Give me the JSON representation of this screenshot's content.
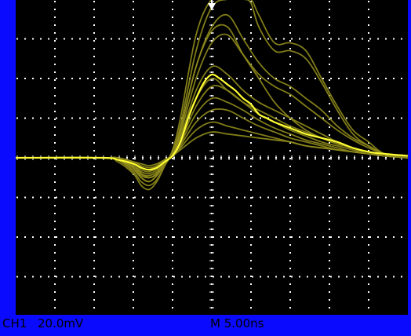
{
  "status_bar": {
    "channel": "CH1",
    "volts_per_div": "20.0mV",
    "timebase": "M 5.00ns"
  },
  "colors": {
    "frame": "#0a0aff",
    "screen": "#000000",
    "grid": "#ffffff",
    "trace_persistence": "#8e8a1c",
    "trace_live": "#ffff33",
    "trigger_marker": "#ffffff"
  },
  "chart_data": {
    "type": "line",
    "title": "",
    "xlabel": "",
    "ylabel": "",
    "x_unit": "ns",
    "y_unit": "mV",
    "ns_per_div": 5,
    "mv_per_div": 20,
    "xlim": [
      -25,
      25
    ],
    "ylim": [
      -80,
      80
    ],
    "grid": true,
    "trigger_x": 0,
    "series": [
      {
        "live": false,
        "x": [
          -25,
          -14,
          -12,
          -10,
          -9,
          -8,
          -7,
          -6,
          -5,
          -4,
          -2,
          0,
          2,
          4,
          5,
          6,
          8,
          10,
          12,
          14,
          16,
          18,
          20,
          22,
          25
        ],
        "y": [
          0,
          0,
          -2,
          -8,
          -14,
          -16,
          -12,
          -4,
          4,
          20,
          62,
          80,
          80,
          80,
          80,
          72,
          58,
          58,
          54,
          40,
          26,
          14,
          8,
          2,
          0
        ]
      },
      {
        "live": false,
        "x": [
          -25,
          -14,
          -12,
          -10,
          -9,
          -8,
          -7,
          -6,
          -5,
          -4,
          -2,
          0,
          2,
          4,
          5,
          6,
          8,
          10,
          12,
          14,
          16,
          18,
          20,
          22,
          25
        ],
        "y": [
          0,
          0,
          -1,
          -7,
          -12,
          -14,
          -11,
          -4,
          3,
          16,
          54,
          76,
          80,
          80,
          78,
          66,
          54,
          54,
          50,
          38,
          24,
          12,
          6,
          2,
          0
        ]
      },
      {
        "live": false,
        "x": [
          -25,
          -14,
          -12,
          -10,
          -9,
          -8,
          -7,
          -6,
          -5,
          -4,
          -2,
          0,
          2,
          4,
          6,
          8,
          10,
          12,
          14,
          16,
          18,
          20,
          22,
          25
        ],
        "y": [
          0,
          0,
          -1,
          -6,
          -10,
          -12,
          -9,
          -3,
          3,
          14,
          46,
          66,
          72,
          60,
          48,
          40,
          36,
          30,
          24,
          16,
          10,
          6,
          2,
          0
        ]
      },
      {
        "live": false,
        "x": [
          -25,
          -14,
          -12,
          -10,
          -9,
          -8,
          -7,
          -6,
          -5,
          -4,
          -2,
          0,
          2,
          4,
          6,
          8,
          10,
          12,
          14,
          16,
          18,
          20,
          22,
          25
        ],
        "y": [
          0,
          0,
          -1,
          -5,
          -9,
          -10,
          -8,
          -3,
          2,
          12,
          40,
          58,
          62,
          52,
          42,
          36,
          32,
          26,
          20,
          14,
          9,
          5,
          2,
          0
        ]
      },
      {
        "live": false,
        "x": [
          -25,
          -14,
          -12,
          -10,
          -9,
          -8,
          -7,
          -6,
          -5,
          -4,
          -2,
          0,
          2,
          4,
          6,
          8,
          10,
          12,
          14,
          16,
          18,
          20,
          22,
          25
        ],
        "y": [
          0,
          0,
          -1,
          -4,
          -8,
          -9,
          -7,
          -2,
          2,
          10,
          34,
          46,
          42,
          34,
          28,
          24,
          20,
          16,
          12,
          8,
          5,
          3,
          1,
          0
        ]
      },
      {
        "live": false,
        "x": [
          -25,
          -14,
          -12,
          -10,
          -9,
          -8,
          -7,
          -6,
          -5,
          -4,
          -2,
          0,
          2,
          4,
          6,
          8,
          10,
          12,
          14,
          16,
          18,
          20,
          22,
          25
        ],
        "y": [
          0,
          0,
          -1,
          -4,
          -7,
          -8,
          -6,
          -2,
          1,
          8,
          26,
          36,
          34,
          28,
          22,
          18,
          14,
          11,
          8,
          6,
          4,
          2,
          1,
          0
        ]
      },
      {
        "live": false,
        "x": [
          -25,
          -14,
          -12,
          -10,
          -9,
          -8,
          -7,
          -6,
          -5,
          -4,
          -2,
          0,
          2,
          4,
          6,
          8,
          10,
          12,
          14,
          16,
          18,
          20,
          22,
          25
        ],
        "y": [
          0,
          0,
          -1,
          -3,
          -6,
          -7,
          -5,
          -2,
          1,
          7,
          22,
          30,
          28,
          24,
          19,
          15,
          12,
          9,
          7,
          5,
          3,
          2,
          1,
          0
        ]
      },
      {
        "live": false,
        "x": [
          -25,
          -14,
          -12,
          -10,
          -9,
          -8,
          -7,
          -6,
          -5,
          -4,
          -2,
          0,
          2,
          4,
          6,
          8,
          10,
          12,
          14,
          16,
          18,
          20,
          22,
          25
        ],
        "y": [
          0,
          0,
          0,
          -3,
          -5,
          -6,
          -4,
          -1,
          1,
          6,
          18,
          24,
          24,
          20,
          16,
          13,
          10,
          8,
          6,
          4,
          3,
          2,
          1,
          0
        ]
      },
      {
        "live": false,
        "x": [
          -25,
          -14,
          -12,
          -10,
          -9,
          -8,
          -7,
          -6,
          -5,
          -4,
          -2,
          0,
          2,
          4,
          6,
          8,
          10,
          12,
          14,
          16,
          18,
          20,
          22,
          25
        ],
        "y": [
          0,
          0,
          0,
          -2,
          -4,
          -5,
          -4,
          -1,
          1,
          5,
          14,
          18,
          16,
          14,
          12,
          10,
          8,
          6,
          5,
          4,
          3,
          2,
          1,
          0
        ]
      },
      {
        "live": false,
        "x": [
          -25,
          -14,
          -12,
          -10,
          -9,
          -8,
          -7,
          -6,
          -5,
          -4,
          -2,
          0,
          2,
          4,
          6,
          8,
          10,
          12,
          14,
          16,
          18,
          20,
          22,
          25
        ],
        "y": [
          0,
          0,
          0,
          -2,
          -3,
          -4,
          -3,
          -1,
          1,
          4,
          10,
          13,
          12,
          11,
          10,
          9,
          8,
          6,
          5,
          4,
          3,
          2,
          1,
          0
        ]
      },
      {
        "live": false,
        "x": [
          -25,
          -14,
          -12,
          -10,
          -9,
          -8,
          -7,
          -6,
          -5,
          -4,
          -2,
          0,
          2,
          4,
          6,
          8,
          10,
          12,
          14,
          16,
          18,
          20,
          22,
          25
        ],
        "y": [
          0,
          0,
          -1,
          -5,
          -10,
          -12,
          -9,
          -3,
          3,
          14,
          46,
          64,
          66,
          52,
          40,
          28,
          20,
          14,
          10,
          7,
          5,
          3,
          1,
          0
        ]
      },
      {
        "live": false,
        "x": [
          -25,
          -14,
          -12,
          -10,
          -9,
          -8,
          -7,
          -6,
          -5,
          -4,
          -2,
          0,
          2,
          4,
          6,
          8,
          10,
          12,
          14,
          16,
          18,
          20,
          22,
          25
        ],
        "y": [
          0,
          0,
          -1,
          -4,
          -8,
          -10,
          -8,
          -2,
          2,
          11,
          30,
          40,
          34,
          28,
          24,
          20,
          16,
          13,
          10,
          7,
          5,
          3,
          1,
          0
        ]
      },
      {
        "live": true,
        "x": [
          -25,
          -14,
          -12,
          -10,
          -9,
          -8,
          -7,
          -6,
          -5,
          -4,
          -3,
          -2,
          -1,
          0,
          1,
          2,
          3,
          4,
          5,
          6,
          7,
          8,
          10,
          12,
          14,
          16,
          18,
          20,
          22,
          25
        ],
        "y": [
          0,
          0,
          -1,
          -3,
          -5,
          -6,
          -5,
          -2,
          1,
          8,
          20,
          30,
          38,
          42,
          40,
          37,
          34,
          30,
          27,
          22,
          20,
          18,
          15,
          12,
          10,
          8,
          5,
          3,
          2,
          1
        ]
      }
    ]
  }
}
